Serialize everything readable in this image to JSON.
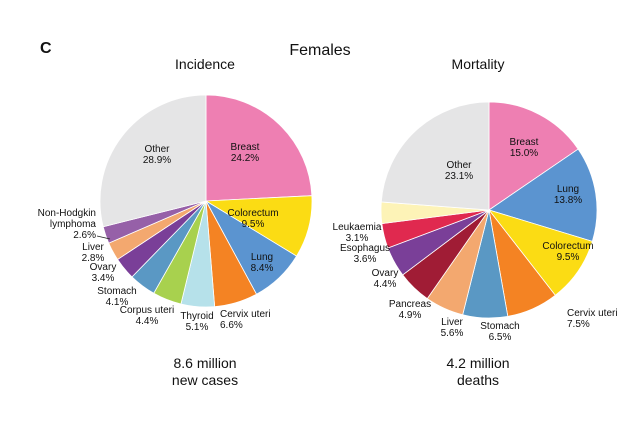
{
  "panel": {
    "letter": "C",
    "title": "Females"
  },
  "chart_data": [
    {
      "type": "pie",
      "title": "Incidence",
      "total_line1": "8.6 million",
      "total_line2": "new cases",
      "slices": [
        {
          "label": "Breast",
          "value": 24.2,
          "value_label": "24.2%",
          "color": "#ee7fb2"
        },
        {
          "label": "Colorectum",
          "value": 9.5,
          "value_label": "9.5%",
          "color": "#fbdc14"
        },
        {
          "label": "Lung",
          "value": 8.4,
          "value_label": "8.4%",
          "color": "#5b94d0"
        },
        {
          "label": "Cervix uteri",
          "value": 6.6,
          "value_label": "6.6%",
          "color": "#f48323"
        },
        {
          "label": "Thyroid",
          "value": 5.1,
          "value_label": "5.1%",
          "color": "#b6e1ea"
        },
        {
          "label": "Corpus uteri",
          "value": 4.4,
          "value_label": "4.4%",
          "color": "#a8d14e"
        },
        {
          "label": "Stomach",
          "value": 4.1,
          "value_label": "4.1%",
          "color": "#5a98c4"
        },
        {
          "label": "Ovary",
          "value": 3.4,
          "value_label": "3.4%",
          "color": "#7a3f98"
        },
        {
          "label": "Liver",
          "value": 2.8,
          "value_label": "2.8%",
          "color": "#f3a86f"
        },
        {
          "label": "Non-Hodgkin lymphoma",
          "value": 2.6,
          "value_label": "2.6%",
          "color": "#9660a8"
        },
        {
          "label": "Other",
          "value": 28.9,
          "value_label": "28.9%",
          "color": "#e5e5e6"
        }
      ]
    },
    {
      "type": "pie",
      "title": "Mortality",
      "total_line1": "4.2 million",
      "total_line2": "deaths",
      "slices": [
        {
          "label": "Breast",
          "value": 15.0,
          "value_label": "15.0%",
          "color": "#ee7fb2"
        },
        {
          "label": "Lung",
          "value": 13.8,
          "value_label": "13.8%",
          "color": "#5b94d0"
        },
        {
          "label": "Colorectum",
          "value": 9.5,
          "value_label": "9.5%",
          "color": "#fbdc14"
        },
        {
          "label": "Cervix uteri",
          "value": 7.5,
          "value_label": "7.5%",
          "color": "#f48323"
        },
        {
          "label": "Stomach",
          "value": 6.5,
          "value_label": "6.5%",
          "color": "#5a98c4"
        },
        {
          "label": "Liver",
          "value": 5.6,
          "value_label": "5.6%",
          "color": "#f3a86f"
        },
        {
          "label": "Pancreas",
          "value": 4.9,
          "value_label": "4.9%",
          "color": "#a01c35"
        },
        {
          "label": "Ovary",
          "value": 4.4,
          "value_label": "4.4%",
          "color": "#7a3f98"
        },
        {
          "label": "Esophagus",
          "value": 3.6,
          "value_label": "3.6%",
          "color": "#e0294f"
        },
        {
          "label": "Leukaemia",
          "value": 3.1,
          "value_label": "3.1%",
          "color": "#fdf3b7"
        },
        {
          "label": "Other",
          "value": 23.1,
          "value_label": "23.1%",
          "color": "#e5e5e6"
        }
      ]
    }
  ]
}
